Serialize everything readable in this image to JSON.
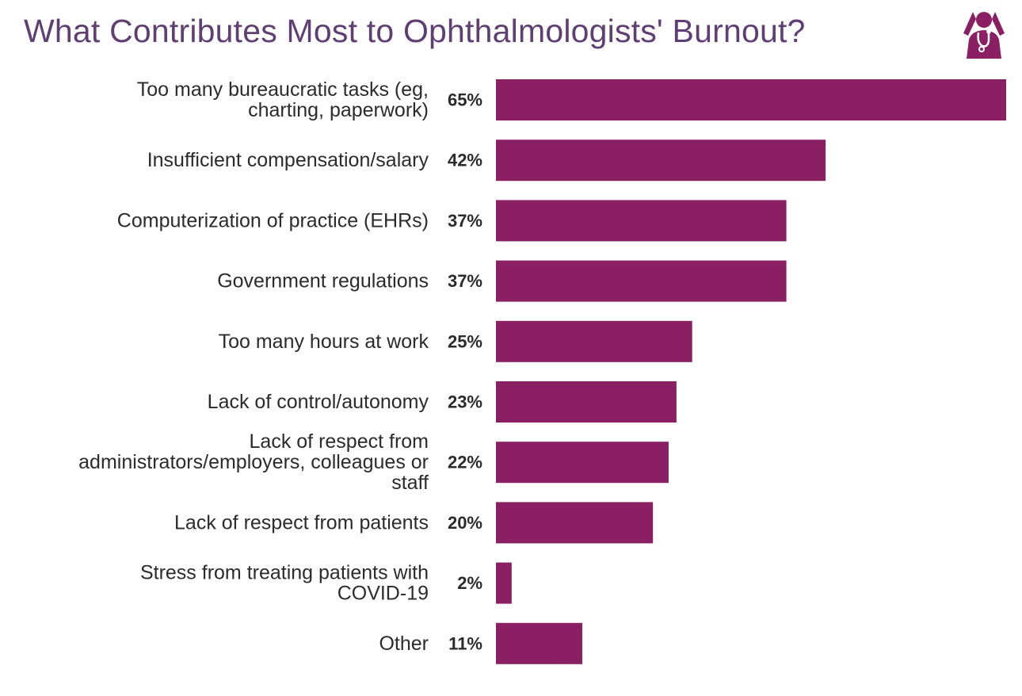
{
  "colors": {
    "title": "#5f3f73",
    "bar": "#8a2063",
    "icon": "#8a2063",
    "text": "#2b2b2b"
  },
  "icon": {
    "name": "stressed-doctor-icon"
  },
  "chart_data": {
    "type": "bar",
    "orientation": "horizontal",
    "title": "What Contributes Most to Ophthalmologists' Burnout?",
    "xlabel": "",
    "ylabel": "",
    "xlim": [
      0,
      65
    ],
    "grid": false,
    "legend": "none",
    "categories": [
      [
        "Too many bureaucratic tasks (eg,",
        "charting, paperwork)"
      ],
      [
        "Insufficient compensation/salary"
      ],
      [
        "Computerization of practice (EHRs)"
      ],
      [
        "Government regulations"
      ],
      [
        "Too many hours at work"
      ],
      [
        "Lack of control/autonomy"
      ],
      [
        "Lack of respect from",
        "administrators/employers, colleagues or",
        "staff"
      ],
      [
        "Lack of respect from patients"
      ],
      [
        "Stress from treating patients with",
        "COVID-19"
      ],
      [
        "Other"
      ]
    ],
    "values": [
      65,
      42,
      37,
      37,
      25,
      23,
      22,
      20,
      2,
      11
    ],
    "value_labels": [
      "65%",
      "42%",
      "37%",
      "37%",
      "25%",
      "23%",
      "22%",
      "20%",
      "2%",
      "11%"
    ]
  }
}
